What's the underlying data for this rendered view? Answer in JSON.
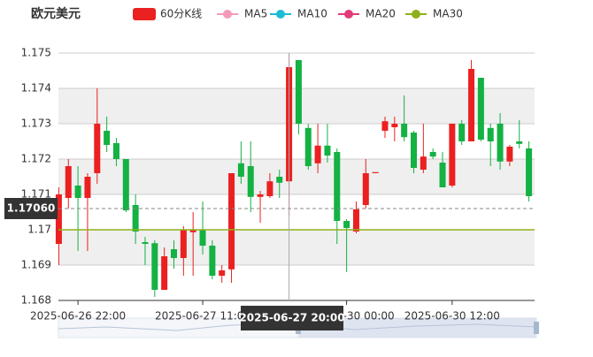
{
  "chart_data": {
    "type": "candlestick",
    "title": "欧元美元",
    "categories": [
      null,
      null,
      "2025-06-26 22:00",
      null,
      null,
      null,
      null,
      null,
      null,
      null,
      null,
      null,
      null,
      null,
      null,
      "2025-06-27 11:00",
      null,
      null,
      null,
      null,
      null,
      null,
      null,
      null,
      null,
      null,
      null,
      null,
      null,
      null,
      "2025-06-30 00:00",
      null,
      null,
      null,
      null,
      null,
      null,
      null,
      null,
      null,
      null,
      "2025-06-30 12:00",
      null,
      null,
      null,
      null,
      null,
      null,
      null,
      null
    ],
    "series": [
      {
        "name": "60分K线",
        "up_color": "#eb2020",
        "down_color": "#14b143",
        "open": [
          1.1696,
          1.1709,
          1.17125,
          1.1709,
          1.1716,
          1.1728,
          1.17245,
          1.172,
          1.1707,
          1.16965,
          1.16962,
          1.1683,
          1.16945,
          1.1692,
          1.16993,
          1.17,
          1.16955,
          1.1687,
          1.16888,
          1.17188,
          1.1718,
          1.17093,
          1.17095,
          1.1715,
          1.17137,
          1.1748,
          1.17288,
          1.17188,
          1.17238,
          1.1722,
          1.17025,
          1.16995,
          1.1707,
          1.1716,
          1.1728,
          1.1729,
          1.173,
          1.17275,
          1.1717,
          1.1722,
          1.1719,
          1.17125,
          1.173,
          1.1725,
          1.1743,
          1.17288,
          1.173,
          1.17193,
          1.1725,
          1.1723
        ],
        "close": [
          1.171,
          1.1718,
          1.1709,
          1.1715,
          1.173,
          1.1724,
          1.172,
          1.17055,
          1.16995,
          1.1696,
          1.1683,
          1.16925,
          1.1692,
          1.17,
          1.17,
          1.16955,
          1.1687,
          1.16885,
          1.1716,
          1.1715,
          1.17093,
          1.171,
          1.17137,
          1.17133,
          1.1746,
          1.173,
          1.1718,
          1.17238,
          1.1721,
          1.17025,
          1.17005,
          1.17058,
          1.1716,
          1.17163,
          1.17307,
          1.173,
          1.17262,
          1.17175,
          1.17207,
          1.17207,
          1.1712,
          1.173,
          1.1725,
          1.17455,
          1.17255,
          1.1725,
          1.17193,
          1.17235,
          1.17243,
          1.17095
        ],
        "low": [
          1.169,
          1.1706,
          1.1694,
          1.1694,
          1.1713,
          1.1722,
          1.1718,
          1.1705,
          1.1696,
          1.169,
          1.1681,
          1.1683,
          1.1689,
          1.1687,
          1.1687,
          1.1693,
          1.1686,
          1.1685,
          1.1685,
          1.1713,
          1.1705,
          1.1702,
          1.1709,
          1.1709,
          1.1704,
          1.1727,
          1.1717,
          1.1716,
          1.1719,
          1.1696,
          1.1688,
          1.1699,
          1.1706,
          1.1716,
          1.1726,
          1.1725,
          1.1725,
          1.1716,
          1.1716,
          1.172,
          1.1712,
          1.1712,
          1.1724,
          1.1725,
          1.1725,
          1.1718,
          1.1717,
          1.1718,
          1.1723,
          1.1708
        ],
        "high": [
          1.1712,
          1.172,
          1.1718,
          1.1716,
          1.174,
          1.1732,
          1.1726,
          1.172,
          1.171,
          1.1698,
          1.1697,
          1.1695,
          1.1697,
          1.1701,
          1.1705,
          1.1708,
          1.1697,
          1.169,
          1.1716,
          1.1725,
          1.1725,
          1.1711,
          1.1716,
          1.1717,
          1.175,
          1.1748,
          1.173,
          1.173,
          1.173,
          1.1723,
          1.1703,
          1.1708,
          1.172,
          1.1716,
          1.1732,
          1.1732,
          1.1738,
          1.1728,
          1.173,
          1.1723,
          1.1722,
          1.173,
          1.1731,
          1.1748,
          1.1743,
          1.173,
          1.1733,
          1.1724,
          1.1731,
          1.1725
        ]
      },
      {
        "name": "MA5",
        "color": "#f59ab8"
      },
      {
        "name": "MA10",
        "color": "#1bbcd4"
      },
      {
        "name": "MA20",
        "color": "#e23a78"
      },
      {
        "name": "MA30",
        "color": "#8db11a",
        "values": [
          1.17,
          1.17,
          1.17,
          1.17,
          1.17,
          1.17,
          1.17,
          1.17,
          1.17,
          1.17,
          1.17,
          1.17,
          1.17,
          1.17,
          1.17,
          1.17,
          1.17,
          1.17,
          1.17,
          1.17,
          1.17,
          1.17,
          1.17,
          1.17,
          1.17,
          1.17,
          1.17,
          1.17,
          1.17,
          1.17,
          1.17,
          1.17,
          1.17,
          1.17,
          1.17,
          1.17,
          1.17,
          1.17,
          1.17,
          1.17,
          1.17,
          1.17,
          1.17,
          1.17,
          1.17,
          1.17,
          1.17,
          1.17,
          1.17,
          1.17
        ]
      }
    ],
    "ylim": [
      1.168,
      1.175
    ],
    "yticks": [
      1.168,
      1.169,
      1.17,
      1.171,
      1.172,
      1.173,
      1.174,
      1.175
    ],
    "grid": true,
    "crosshair": {
      "x": "2025-06-27 20:00",
      "y": {
        "value": 1.1706,
        "label": "1.17060"
      }
    }
  }
}
